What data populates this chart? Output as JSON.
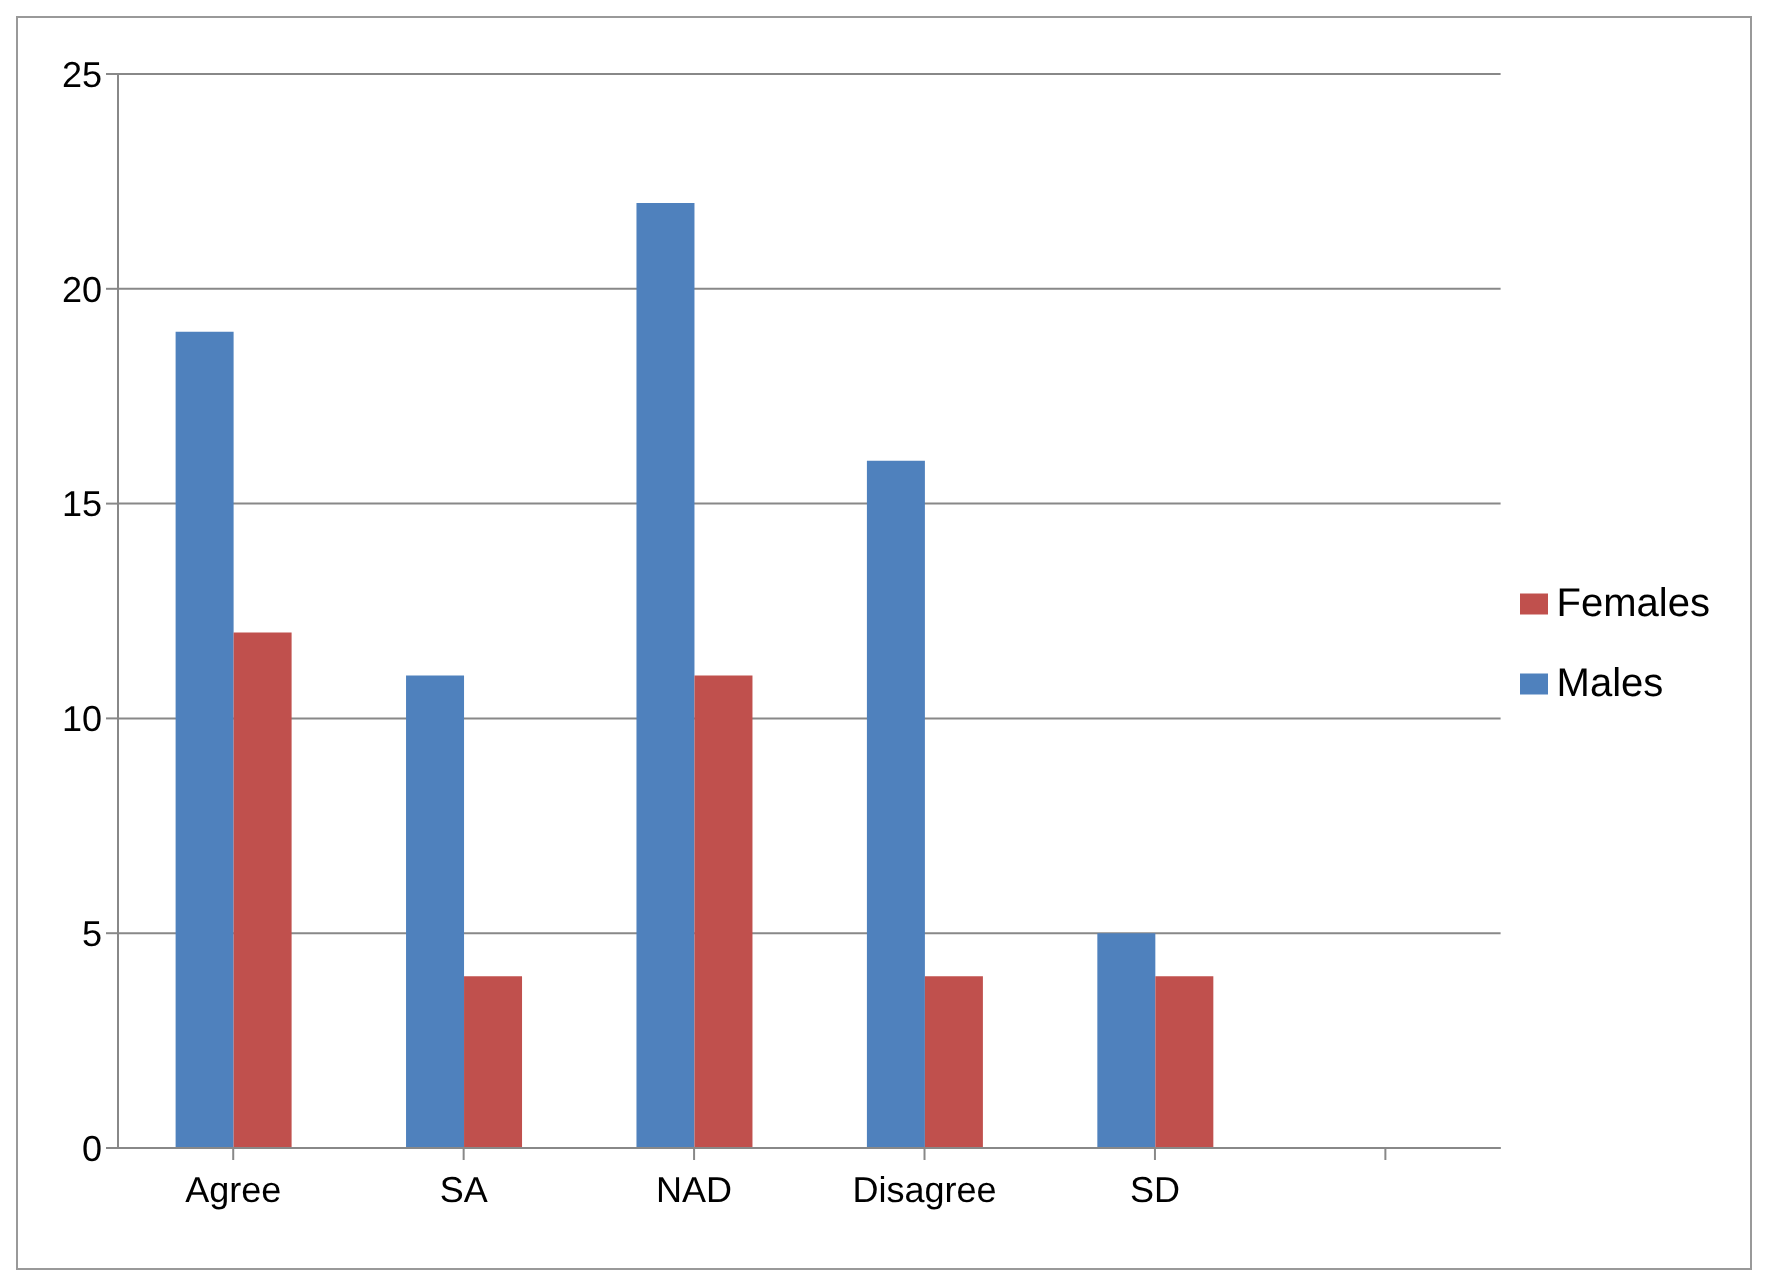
{
  "chart_data": {
    "type": "bar",
    "categories": [
      "Agree",
      "SA",
      "NAD",
      "Disagree",
      "SD",
      null
    ],
    "series": [
      {
        "name": "Males",
        "color": "#4f81bd",
        "values": [
          19,
          11,
          22,
          16,
          5,
          null
        ]
      },
      {
        "name": "Females",
        "color": "#c0504d",
        "values": [
          12,
          4,
          11,
          4,
          4,
          null
        ]
      }
    ],
    "ylim": [
      0,
      25
    ],
    "yticks": [
      0,
      5,
      10,
      15,
      20,
      25
    ],
    "grid": "y",
    "legend": "right"
  }
}
